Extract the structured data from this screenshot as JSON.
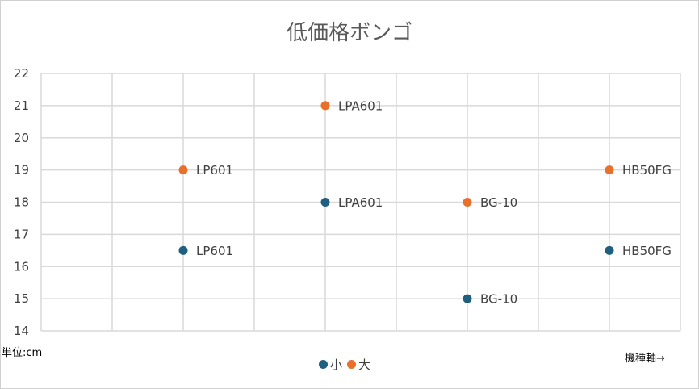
{
  "chart_data": {
    "type": "scatter",
    "title": "低価格ボンゴ",
    "ylim": [
      14,
      22
    ],
    "xlim": [
      0,
      9
    ],
    "yticks": [
      14,
      15,
      16,
      17,
      18,
      19,
      20,
      21,
      22
    ],
    "grid": true,
    "legend_position": "bottom",
    "y_unit_note": "単位:cm",
    "x_axis_note": "機種軸→",
    "series": [
      {
        "name": "小",
        "color": "#1f5f7f",
        "points": [
          {
            "x": 2,
            "y": 16.5,
            "label": "LP601"
          },
          {
            "x": 4,
            "y": 18,
            "label": "LPA601"
          },
          {
            "x": 6,
            "y": 15,
            "label": "BG-10"
          },
          {
            "x": 8,
            "y": 16.5,
            "label": "HB50FG"
          }
        ]
      },
      {
        "name": "大",
        "color": "#e8702a",
        "points": [
          {
            "x": 2,
            "y": 19,
            "label": "LP601"
          },
          {
            "x": 4,
            "y": 21,
            "label": "LPA601"
          },
          {
            "x": 6,
            "y": 18,
            "label": "BG-10"
          },
          {
            "x": 8,
            "y": 19,
            "label": "HB50FG"
          }
        ]
      }
    ]
  }
}
